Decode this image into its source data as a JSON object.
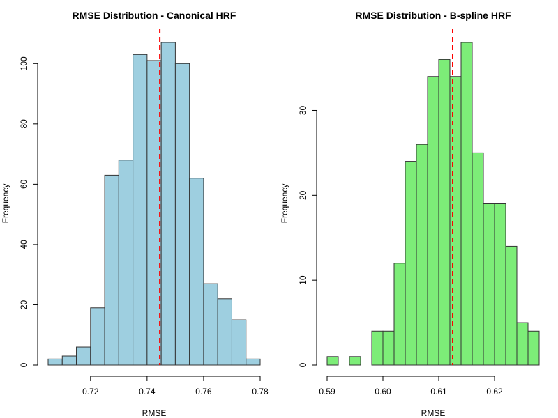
{
  "chart_data": [
    {
      "type": "bar",
      "title": "RMSE Distribution - Canonical HRF",
      "xlabel": "RMSE",
      "ylabel": "Frequency",
      "bin_edges": [
        0.705,
        0.71,
        0.715,
        0.72,
        0.725,
        0.73,
        0.735,
        0.74,
        0.745,
        0.75,
        0.755,
        0.76,
        0.765,
        0.77,
        0.775,
        0.78
      ],
      "values": [
        2,
        3,
        6,
        19,
        63,
        68,
        103,
        101,
        107,
        100,
        62,
        27,
        22,
        15,
        2
      ],
      "xlim": [
        0.705,
        0.78
      ],
      "ylim": [
        0,
        107
      ],
      "xticks": [
        0.72,
        0.74,
        0.76,
        0.78
      ],
      "xtick_labels": [
        "0.72",
        "0.74",
        "0.76",
        "0.78"
      ],
      "yticks": [
        0,
        20,
        40,
        60,
        80,
        100
      ],
      "ytick_labels": [
        "0",
        "20",
        "40",
        "60",
        "80",
        "100"
      ],
      "mean_line": 0.7445,
      "bar_color": "#9ecfe0",
      "mean_line_color": "#ff0000",
      "grid": false
    },
    {
      "type": "bar",
      "title": "RMSE Distribution - B-spline HRF",
      "xlabel": "RMSE",
      "ylabel": "Frequency",
      "bin_edges": [
        0.59,
        0.592,
        0.594,
        0.596,
        0.598,
        0.6,
        0.602,
        0.604,
        0.606,
        0.608,
        0.61,
        0.612,
        0.614,
        0.616,
        0.618,
        0.62,
        0.622,
        0.624,
        0.626,
        0.628
      ],
      "values": [
        1,
        0,
        1,
        0,
        4,
        4,
        12,
        24,
        26,
        34,
        36,
        34,
        38,
        25,
        19,
        19,
        14,
        5,
        4
      ],
      "xlim": [
        0.59,
        0.628
      ],
      "ylim": [
        0,
        38
      ],
      "xticks": [
        0.59,
        0.6,
        0.61,
        0.62
      ],
      "xtick_labels": [
        "0.59",
        "0.60",
        "0.61",
        "0.62"
      ],
      "yticks": [
        0,
        10,
        20,
        30
      ],
      "ytick_labels": [
        "0",
        "10",
        "20",
        "30"
      ],
      "mean_line": 0.6125,
      "bar_color": "#7ded78",
      "mean_line_color": "#ff0000",
      "grid": false
    }
  ]
}
